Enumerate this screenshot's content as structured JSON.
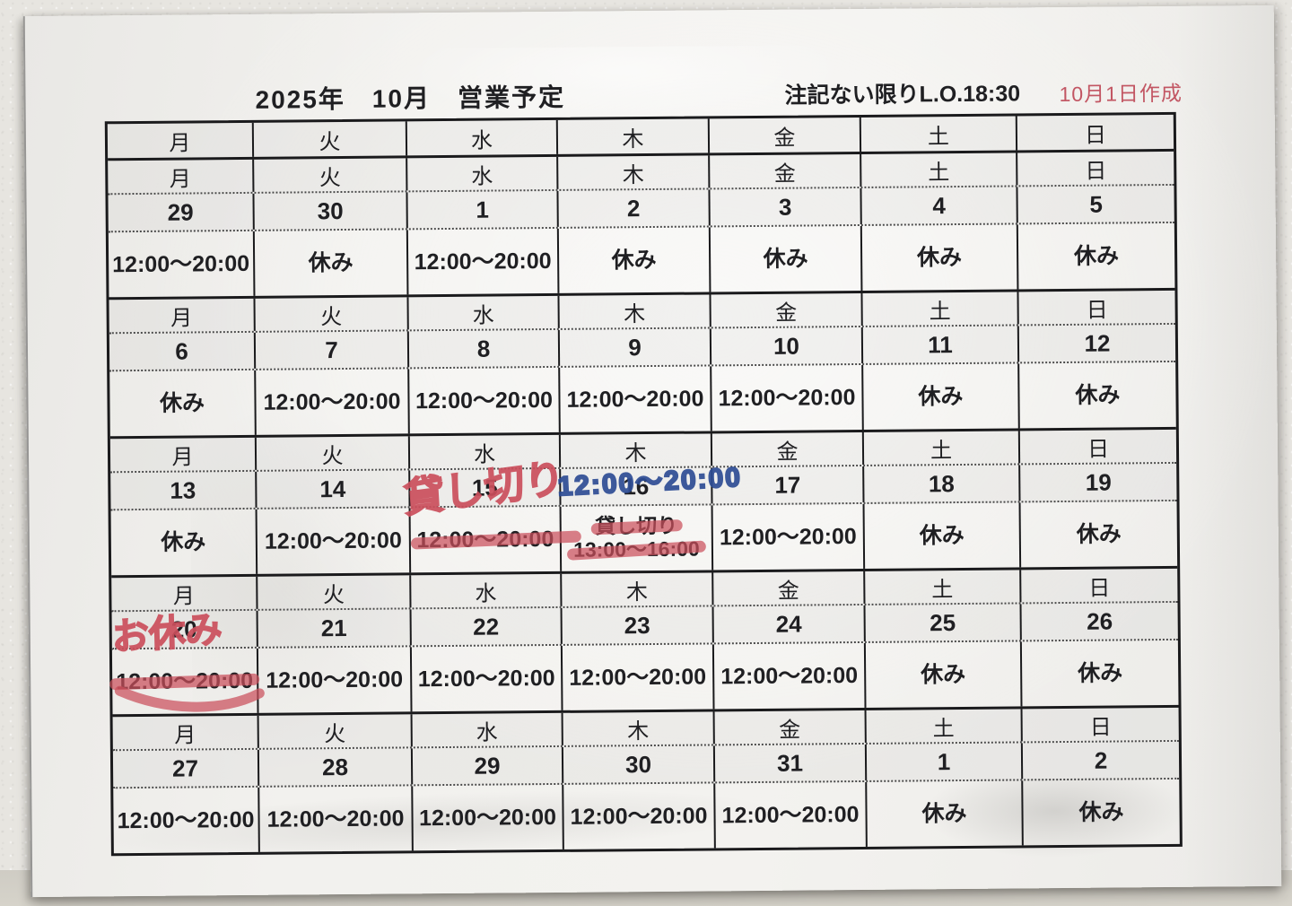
{
  "header": {
    "title": "2025年　10月　営業予定",
    "note": "注記ない限りL.O.18:30",
    "created": "10月1日作成"
  },
  "weekday_header": [
    "月",
    "火",
    "水",
    "木",
    "金",
    "土",
    "日"
  ],
  "weeks": [
    {
      "days": [
        {
          "weekday": "月",
          "date": "29",
          "hours": [
            "12:00～20:00"
          ]
        },
        {
          "weekday": "火",
          "date": "30",
          "hours": [
            "休み"
          ]
        },
        {
          "weekday": "水",
          "date": "1",
          "hours": [
            "12:00～20:00"
          ]
        },
        {
          "weekday": "木",
          "date": "2",
          "hours": [
            "休み"
          ]
        },
        {
          "weekday": "金",
          "date": "3",
          "hours": [
            "休み"
          ]
        },
        {
          "weekday": "土",
          "date": "4",
          "hours": [
            "休み"
          ]
        },
        {
          "weekday": "日",
          "date": "5",
          "hours": [
            "休み"
          ]
        }
      ]
    },
    {
      "days": [
        {
          "weekday": "月",
          "date": "6",
          "hours": [
            "休み"
          ]
        },
        {
          "weekday": "火",
          "date": "7",
          "hours": [
            "12:00～20:00"
          ]
        },
        {
          "weekday": "水",
          "date": "8",
          "hours": [
            "12:00～20:00"
          ]
        },
        {
          "weekday": "木",
          "date": "9",
          "hours": [
            "12:00～20:00"
          ]
        },
        {
          "weekday": "金",
          "date": "10",
          "hours": [
            "12:00～20:00"
          ]
        },
        {
          "weekday": "土",
          "date": "11",
          "hours": [
            "休み"
          ]
        },
        {
          "weekday": "日",
          "date": "12",
          "hours": [
            "休み"
          ]
        }
      ]
    },
    {
      "days": [
        {
          "weekday": "月",
          "date": "13",
          "hours": [
            "休み"
          ]
        },
        {
          "weekday": "火",
          "date": "14",
          "hours": [
            "12:00～20:00"
          ]
        },
        {
          "weekday": "水",
          "date": "15",
          "hours": [
            "12:00～20:00"
          ],
          "strike": true,
          "handwriting": {
            "color": "red",
            "text": "貸し切り"
          }
        },
        {
          "weekday": "木",
          "date": "16",
          "hours": [
            "貸し切り",
            "13:00～16:00"
          ],
          "strike": true,
          "handwriting": {
            "color": "blue",
            "text": "12:00～20:00"
          }
        },
        {
          "weekday": "金",
          "date": "17",
          "hours": [
            "12:00～20:00"
          ]
        },
        {
          "weekday": "土",
          "date": "18",
          "hours": [
            "休み"
          ]
        },
        {
          "weekday": "日",
          "date": "19",
          "hours": [
            "休み"
          ]
        }
      ]
    },
    {
      "days": [
        {
          "weekday": "月",
          "date": "20",
          "hours": [
            "12:00～20:00"
          ],
          "strike": true,
          "tail": true,
          "handwriting": {
            "color": "red",
            "text": "お休み"
          }
        },
        {
          "weekday": "火",
          "date": "21",
          "hours": [
            "12:00～20:00"
          ]
        },
        {
          "weekday": "水",
          "date": "22",
          "hours": [
            "12:00～20:00"
          ]
        },
        {
          "weekday": "木",
          "date": "23",
          "hours": [
            "12:00～20:00"
          ]
        },
        {
          "weekday": "金",
          "date": "24",
          "hours": [
            "12:00～20:00"
          ]
        },
        {
          "weekday": "土",
          "date": "25",
          "hours": [
            "休み"
          ]
        },
        {
          "weekday": "日",
          "date": "26",
          "hours": [
            "休み"
          ]
        }
      ]
    },
    {
      "days": [
        {
          "weekday": "月",
          "date": "27",
          "hours": [
            "12:00～20:00"
          ]
        },
        {
          "weekday": "火",
          "date": "28",
          "hours": [
            "12:00～20:00"
          ]
        },
        {
          "weekday": "水",
          "date": "29",
          "hours": [
            "12:00～20:00"
          ]
        },
        {
          "weekday": "木",
          "date": "30",
          "hours": [
            "12:00～20:00"
          ]
        },
        {
          "weekday": "金",
          "date": "31",
          "hours": [
            "12:00～20:00"
          ]
        },
        {
          "weekday": "土",
          "date": "1",
          "hours": [
            "休み"
          ]
        },
        {
          "weekday": "日",
          "date": "2",
          "hours": [
            "休み"
          ]
        }
      ]
    }
  ],
  "colors": {
    "ink": "#1f1f22",
    "marker_red": "#cb4f5c",
    "marker_blue": "#2e4d95",
    "created_red": "#c25663",
    "paper": "#f1f0ed",
    "wall": "#e7e5e0"
  }
}
